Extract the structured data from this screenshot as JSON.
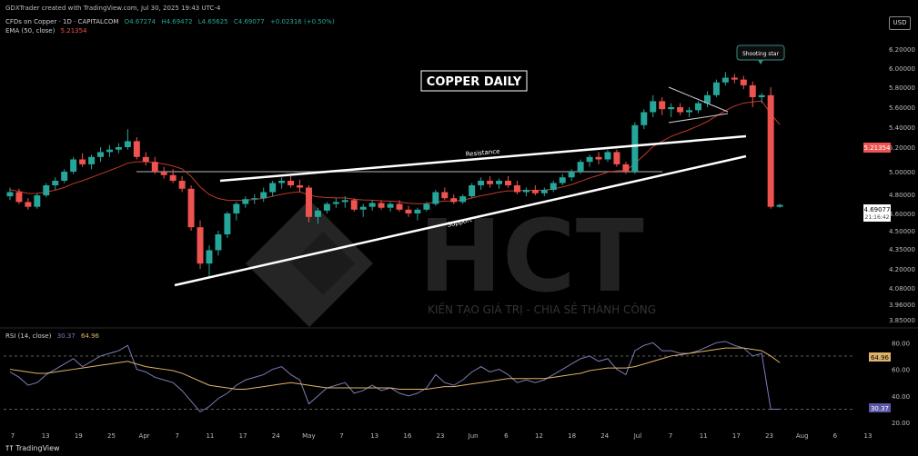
{
  "header": {
    "author_line": "GDXTrader created with TradingView.com, Jul 30, 2025 19:43 UTC-4",
    "symbol": "CFDs on Copper · 1D · CAPITALCOM",
    "ohlc": {
      "open": "O4.67274",
      "high": "H4.69472",
      "low": "L4.65625",
      "close": "C4.69077",
      "change": "+0.02316 (+0.50%)"
    },
    "ema_label": "EMA (50, close)",
    "ema_value": "5.21354"
  },
  "currency": "USD",
  "footer_brand": "TradingView",
  "watermark": {
    "brand": "HCT",
    "tagline": "KIẾN TẠO GIÁ TRỊ - CHIA SẺ THÀNH CÔNG"
  },
  "colors": {
    "up": "#26a69a",
    "down": "#ef5350",
    "ema": "#c0392b",
    "rsi": "#7e7bb8",
    "rsi_ma": "#e0b36a",
    "trendline": "#ffffff"
  },
  "chart_data": [
    {
      "type": "candlestick",
      "title": "COPPER DAILY",
      "y_ticks": [
        6.2,
        6.0,
        5.8,
        5.6,
        5.4,
        5.2,
        5.0,
        4.8,
        4.6,
        4.5,
        4.35,
        4.2,
        4.08,
        3.96,
        3.85
      ],
      "ylim": [
        3.82,
        6.32
      ],
      "current_price_label": "4.69077",
      "countdown": "21:16:42",
      "ema_label_value": "5.21354",
      "x_ticks": [
        "7",
        "13",
        "19",
        "25",
        "Apr",
        "7",
        "11",
        "17",
        "24",
        "May",
        "7",
        "13",
        "16",
        "23",
        "Jun",
        "6",
        "12",
        "18",
        "24",
        "Jul",
        "7",
        "11",
        "17",
        "23",
        "Aug",
        "6",
        "13"
      ],
      "annotations": {
        "shooting_star": "Shooting star",
        "resistance": "Resistance",
        "support": "Support"
      },
      "candles": [
        [
          4.78,
          4.86,
          4.74,
          4.82
        ],
        [
          4.82,
          4.85,
          4.7,
          4.72
        ],
        [
          4.72,
          4.76,
          4.64,
          4.67
        ],
        [
          4.67,
          4.81,
          4.65,
          4.79
        ],
        [
          4.79,
          4.9,
          4.77,
          4.88
        ],
        [
          4.88,
          4.95,
          4.84,
          4.92
        ],
        [
          4.92,
          5.02,
          4.9,
          5.0
        ],
        [
          5.0,
          5.12,
          4.98,
          5.1
        ],
        [
          5.1,
          5.15,
          5.04,
          5.06
        ],
        [
          5.06,
          5.14,
          5.02,
          5.12
        ],
        [
          5.12,
          5.2,
          5.08,
          5.16
        ],
        [
          5.16,
          5.22,
          5.12,
          5.18
        ],
        [
          5.18,
          5.24,
          5.15,
          5.2
        ],
        [
          5.2,
          5.38,
          5.18,
          5.26
        ],
        [
          5.26,
          5.3,
          5.1,
          5.12
        ],
        [
          5.12,
          5.16,
          5.05,
          5.08
        ],
        [
          5.08,
          5.12,
          4.98,
          5.0
        ],
        [
          5.0,
          5.04,
          4.94,
          4.97
        ],
        [
          4.97,
          5.02,
          4.9,
          4.92
        ],
        [
          4.92,
          4.96,
          4.82,
          4.85
        ],
        [
          4.85,
          4.88,
          4.5,
          4.52
        ],
        [
          4.52,
          4.56,
          4.2,
          4.24
        ],
        [
          4.24,
          4.38,
          4.15,
          4.34
        ],
        [
          4.34,
          4.5,
          4.3,
          4.47
        ],
        [
          4.47,
          4.62,
          4.44,
          4.6
        ],
        [
          4.6,
          4.72,
          4.56,
          4.7
        ],
        [
          4.7,
          4.78,
          4.66,
          4.75
        ],
        [
          4.75,
          4.8,
          4.7,
          4.76
        ],
        [
          4.76,
          4.86,
          4.72,
          4.82
        ],
        [
          4.82,
          4.92,
          4.78,
          4.9
        ],
        [
          4.9,
          4.95,
          4.85,
          4.92
        ],
        [
          4.92,
          4.96,
          4.86,
          4.88
        ],
        [
          4.88,
          4.93,
          4.82,
          4.86
        ],
        [
          4.86,
          4.88,
          4.55,
          4.58
        ],
        [
          4.58,
          4.66,
          4.54,
          4.63
        ],
        [
          4.63,
          4.72,
          4.6,
          4.7
        ],
        [
          4.7,
          4.76,
          4.66,
          4.72
        ],
        [
          4.72,
          4.78,
          4.66,
          4.74
        ],
        [
          4.74,
          4.76,
          4.62,
          4.64
        ],
        [
          4.64,
          4.7,
          4.58,
          4.67
        ],
        [
          4.67,
          4.74,
          4.63,
          4.71
        ],
        [
          4.71,
          4.74,
          4.64,
          4.66
        ],
        [
          4.66,
          4.72,
          4.62,
          4.7
        ],
        [
          4.7,
          4.74,
          4.62,
          4.64
        ],
        [
          4.64,
          4.68,
          4.58,
          4.6
        ],
        [
          4.6,
          4.66,
          4.56,
          4.64
        ],
        [
          4.64,
          4.72,
          4.62,
          4.7
        ],
        [
          4.7,
          4.84,
          4.68,
          4.82
        ],
        [
          4.82,
          4.86,
          4.74,
          4.76
        ],
        [
          4.76,
          4.8,
          4.7,
          4.72
        ],
        [
          4.72,
          4.8,
          4.7,
          4.78
        ],
        [
          4.78,
          4.9,
          4.76,
          4.88
        ],
        [
          4.88,
          4.95,
          4.84,
          4.92
        ],
        [
          4.92,
          4.96,
          4.86,
          4.89
        ],
        [
          4.89,
          4.94,
          4.85,
          4.92
        ],
        [
          4.92,
          4.96,
          4.86,
          4.88
        ],
        [
          4.88,
          4.92,
          4.8,
          4.82
        ],
        [
          4.82,
          4.86,
          4.78,
          4.84
        ],
        [
          4.84,
          4.88,
          4.79,
          4.81
        ],
        [
          4.81,
          4.86,
          4.78,
          4.84
        ],
        [
          4.84,
          4.92,
          4.82,
          4.9
        ],
        [
          4.9,
          4.98,
          4.88,
          4.95
        ],
        [
          4.95,
          5.02,
          4.92,
          5.0
        ],
        [
          5.0,
          5.1,
          4.98,
          5.08
        ],
        [
          5.08,
          5.14,
          5.04,
          5.12
        ],
        [
          5.12,
          5.16,
          5.06,
          5.1
        ],
        [
          5.1,
          5.18,
          5.08,
          5.16
        ],
        [
          5.16,
          5.18,
          5.04,
          5.06
        ],
        [
          5.06,
          5.08,
          4.98,
          5.0
        ],
        [
          5.0,
          5.45,
          4.98,
          5.42
        ],
        [
          5.42,
          5.58,
          5.38,
          5.55
        ],
        [
          5.55,
          5.72,
          5.5,
          5.66
        ],
        [
          5.66,
          5.7,
          5.52,
          5.58
        ],
        [
          5.58,
          5.64,
          5.5,
          5.6
        ],
        [
          5.6,
          5.64,
          5.52,
          5.55
        ],
        [
          5.55,
          5.6,
          5.5,
          5.57
        ],
        [
          5.57,
          5.66,
          5.54,
          5.64
        ],
        [
          5.64,
          5.76,
          5.6,
          5.72
        ],
        [
          5.72,
          5.88,
          5.7,
          5.85
        ],
        [
          5.85,
          5.96,
          5.82,
          5.9
        ],
        [
          5.9,
          5.94,
          5.84,
          5.88
        ],
        [
          5.88,
          5.92,
          5.78,
          5.82
        ],
        [
          5.82,
          5.86,
          5.6,
          5.7
        ],
        [
          5.7,
          5.74,
          5.64,
          5.72
        ],
        [
          5.72,
          5.8,
          4.65,
          4.67
        ],
        [
          4.67,
          4.7,
          4.66,
          4.69
        ]
      ]
    },
    {
      "type": "line",
      "title": "RSI (14, close)",
      "rsi_value": "30.37",
      "rsi_ma_value": "64.96",
      "y_ticks": [
        80,
        60,
        40,
        20
      ],
      "ylim": [
        18,
        85
      ],
      "levels": [
        70,
        30
      ],
      "series": [
        {
          "name": "RSI",
          "values": [
            58,
            54,
            48,
            50,
            56,
            60,
            64,
            68,
            62,
            66,
            70,
            72,
            74,
            78,
            60,
            58,
            54,
            52,
            50,
            44,
            36,
            28,
            32,
            38,
            42,
            48,
            52,
            54,
            56,
            60,
            62,
            56,
            52,
            34,
            40,
            46,
            48,
            50,
            42,
            44,
            48,
            44,
            46,
            42,
            40,
            42,
            46,
            56,
            50,
            48,
            52,
            58,
            62,
            58,
            60,
            56,
            50,
            52,
            50,
            52,
            56,
            60,
            64,
            68,
            70,
            66,
            68,
            60,
            56,
            74,
            78,
            80,
            74,
            74,
            72,
            72,
            74,
            77,
            80,
            81,
            78,
            76,
            70,
            72,
            30,
            30
          ]
        },
        {
          "name": "RSI MA",
          "values": [
            60,
            59,
            58,
            57,
            57,
            58,
            59,
            60,
            61,
            62,
            63,
            64,
            65,
            66,
            64,
            62,
            61,
            60,
            59,
            57,
            54,
            51,
            48,
            47,
            46,
            45,
            45,
            46,
            47,
            48,
            49,
            50,
            49,
            48,
            47,
            46,
            46,
            46,
            46,
            46,
            46,
            46,
            46,
            45,
            45,
            45,
            45,
            46,
            47,
            47,
            48,
            49,
            50,
            51,
            52,
            53,
            53,
            53,
            53,
            53,
            54,
            55,
            56,
            57,
            59,
            60,
            61,
            61,
            61,
            62,
            64,
            66,
            68,
            70,
            71,
            72,
            73,
            74,
            75,
            76,
            76,
            76,
            75,
            74,
            70,
            65
          ]
        }
      ]
    }
  ]
}
